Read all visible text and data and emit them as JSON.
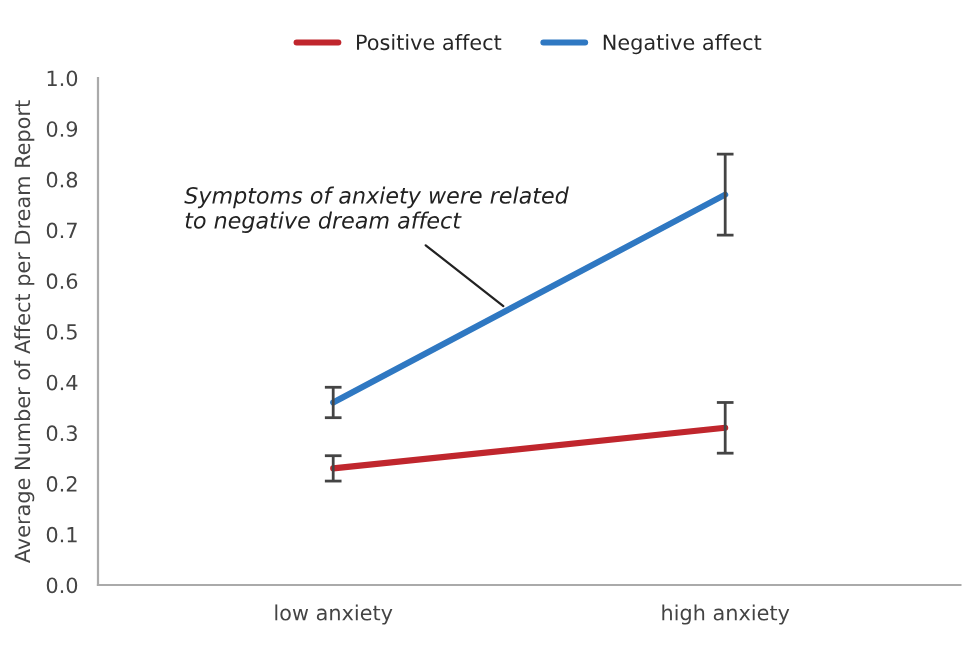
{
  "chart_data": {
    "type": "line",
    "ylabel": "Average Number of Affect per Dream Report",
    "categories": [
      "low anxiety",
      "high anxiety"
    ],
    "series": [
      {
        "name": "Positive affect",
        "color": "#c0262d",
        "values": [
          0.23,
          0.31
        ],
        "errors": [
          0.025,
          0.05
        ]
      },
      {
        "name": "Negative affect",
        "color": "#2f78c2",
        "values": [
          0.36,
          0.77
        ],
        "errors": [
          0.03,
          0.08
        ]
      }
    ],
    "ylim": [
      0,
      1.0
    ],
    "yticks": [
      {
        "value": 0,
        "label": "0.0"
      },
      {
        "value": 0.1,
        "label": "0.1"
      },
      {
        "value": 0.2,
        "label": "0.2"
      },
      {
        "value": 0.3,
        "label": "0.3"
      },
      {
        "value": 0.4,
        "label": "0.4"
      },
      {
        "value": 0.5,
        "label": "0.5"
      },
      {
        "value": 0.6,
        "label": "0.6"
      },
      {
        "value": 0.7,
        "label": "0.7"
      },
      {
        "value": 0.8,
        "label": "0.8"
      },
      {
        "value": 0.9,
        "label": "0.9"
      },
      {
        "value": 1.0,
        "label": "1.0"
      }
    ],
    "legend": "top",
    "grid": false,
    "marker": "none",
    "line_style": "solid",
    "annotations": [
      "Symptoms of anxiety were related\nto negative dream affect"
    ]
  }
}
